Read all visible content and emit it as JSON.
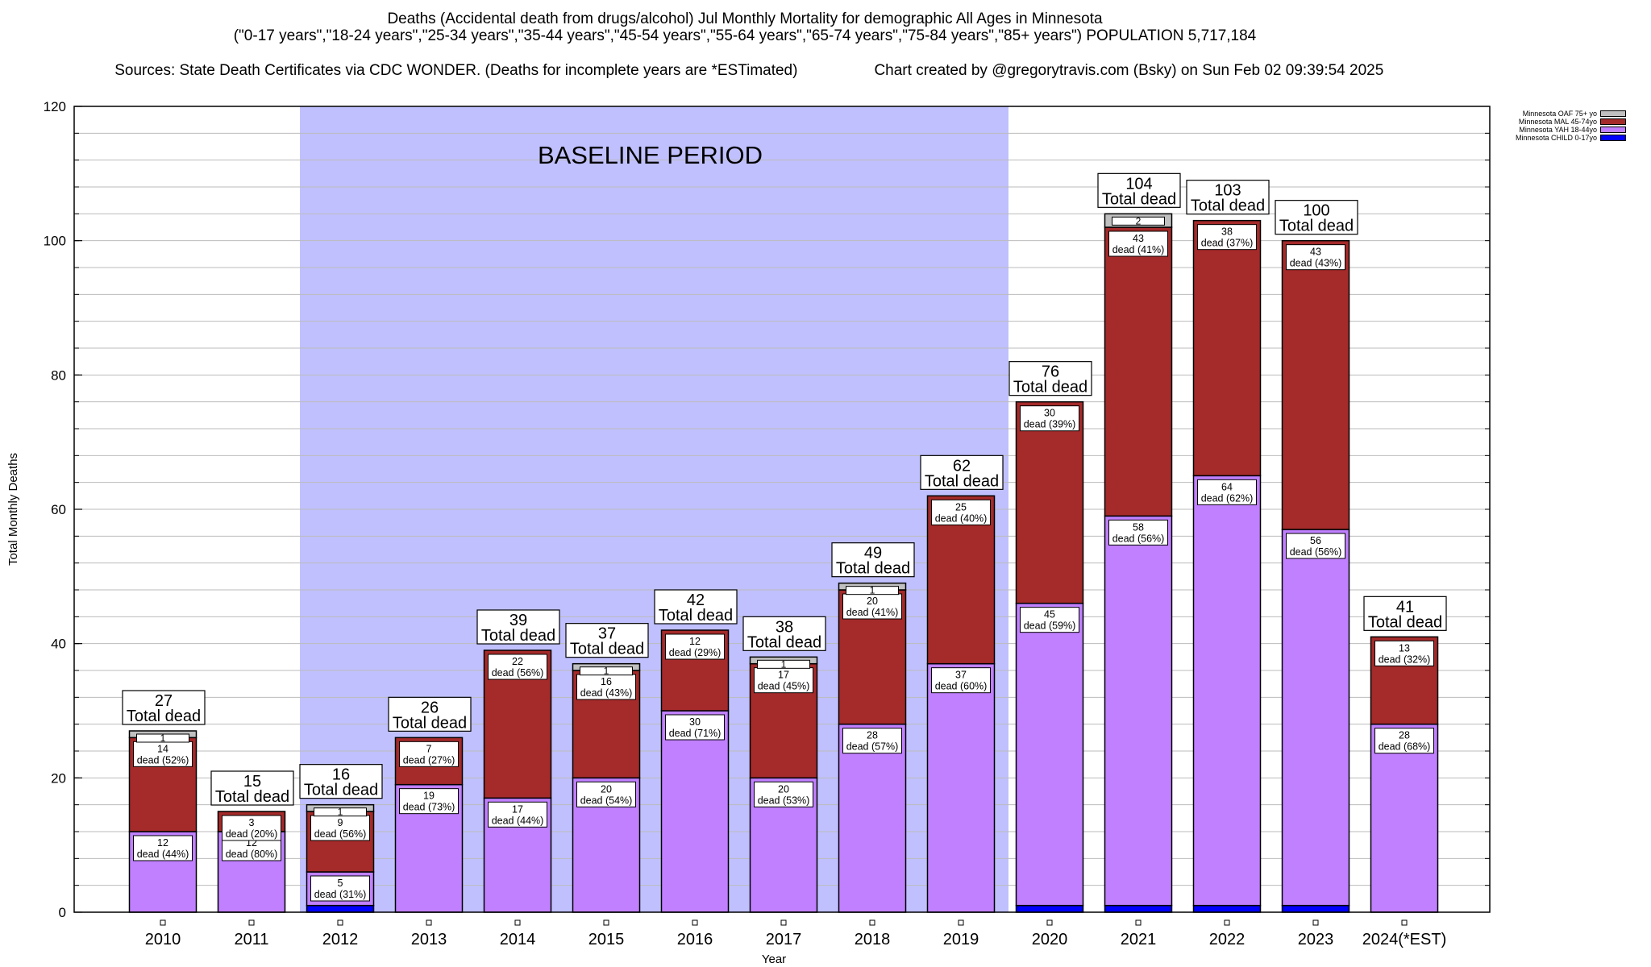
{
  "header": {
    "title_line1": "Deaths (Accidental death from drugs/alcohol) Jul Monthly Mortality for demographic All Ages in Minnesota",
    "title_line2": "(\"0-17 years\",\"18-24 years\",\"25-34 years\",\"35-44 years\",\"45-54 years\",\"55-64 years\",\"65-74 years\",\"75-84 years\",\"85+ years\") POPULATION 5,717,184",
    "sources": "Sources: State Death Certificates via CDC WONDER. (Deaths for incomplete years are *ESTimated)",
    "credit": "Chart created by @gregorytravis.com (Bsky) on Sun Feb 02 09:39:54 2025"
  },
  "chart_data": {
    "type": "bar",
    "stacked": true,
    "title": "Deaths (Accidental death from drugs/alcohol) Jul Monthly Mortality for demographic All Ages in Minnesota",
    "xlabel": "Year",
    "ylabel": "Total Monthly Deaths",
    "ylim": [
      0,
      120
    ],
    "yticks": [
      0,
      20,
      40,
      60,
      80,
      100,
      120
    ],
    "grid": true,
    "legend_position": "top-right",
    "categories": [
      "2010",
      "2011",
      "2012",
      "2013",
      "2014",
      "2015",
      "2016",
      "2017",
      "2018",
      "2019",
      "2020",
      "2021",
      "2022",
      "2023",
      "2024(*EST)"
    ],
    "series": [
      {
        "name": "Minnesota CHILD 0-17yo",
        "color": "#0000ff",
        "values": [
          0,
          0,
          1,
          0,
          0,
          0,
          0,
          0,
          0,
          0,
          1,
          1,
          1,
          1,
          0
        ]
      },
      {
        "name": "Minnesota YAH 18-44yo",
        "color": "#c080ff",
        "values": [
          12,
          12,
          5,
          19,
          17,
          20,
          30,
          20,
          28,
          37,
          45,
          58,
          64,
          56,
          28
        ]
      },
      {
        "name": "Minnesota MAL 45-74yo",
        "color": "#a52a2a",
        "values": [
          14,
          3,
          9,
          7,
          22,
          16,
          12,
          17,
          20,
          25,
          30,
          43,
          38,
          43,
          13
        ]
      },
      {
        "name": "Minnesota OAF 75+ yo",
        "color": "#c0c0c0",
        "values": [
          1,
          0,
          1,
          0,
          0,
          1,
          0,
          1,
          1,
          0,
          0,
          2,
          0,
          0,
          0
        ]
      }
    ],
    "totals": [
      27,
      15,
      16,
      26,
      39,
      37,
      42,
      38,
      49,
      62,
      76,
      104,
      103,
      100,
      41
    ],
    "segment_labels": {
      "YAH": [
        "12\ndead (44%)",
        "12\ndead (80%)",
        "5\ndead (31%)",
        "19\ndead (73%)",
        "17\ndead (44%)",
        "20\ndead (54%)",
        "30\ndead (71%)",
        "20\ndead (53%)",
        "28\ndead (57%)",
        "37\ndead (60%)",
        "45\ndead (59%)",
        "58\ndead (56%)",
        "64\ndead (62%)",
        "56\ndead (56%)",
        "28\ndead (68%)"
      ],
      "MAL": [
        "14\ndead (52%)",
        "3\ndead (20%)",
        "9\ndead (56%)",
        "7\ndead (27%)",
        "22\ndead (56%)",
        "16\ndead (43%)",
        "12\ndead (29%)",
        "17\ndead (45%)",
        "20\ndead (41%)",
        "25\ndead (40%)",
        "30\ndead (39%)",
        "43\ndead (41%)",
        "38\ndead (37%)",
        "43\ndead (43%)",
        "13\ndead (32%)"
      ],
      "OAF": [
        "1",
        "",
        "1",
        "",
        "",
        "1",
        "",
        "1",
        "1",
        "",
        "",
        "2",
        "",
        "",
        ""
      ]
    },
    "total_label_suffix": "Total dead",
    "annotation": {
      "text": "BASELINE PERIOD",
      "range": [
        "2012",
        "2019"
      ],
      "color": "#c0c0ff"
    }
  },
  "colors": {
    "baseline_shade": "#c0c0ff",
    "grid": "#bbbbbb"
  }
}
